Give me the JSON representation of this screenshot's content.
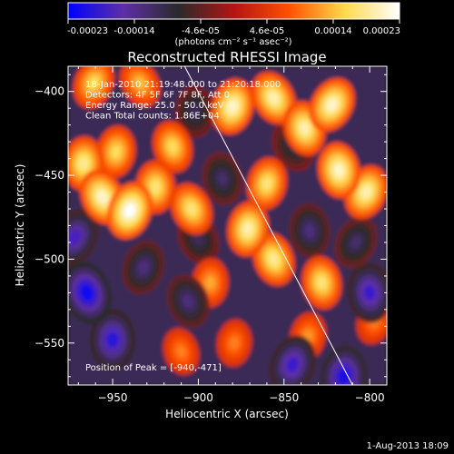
{
  "colorbar": {
    "tick_labels": [
      "-0.00023",
      "-0.00014",
      "-4.6e-05",
      "4.6e-05",
      "0.00014",
      "0.00023"
    ],
    "range": [
      -0.00023,
      0.00023
    ],
    "units_label": "(photons cm⁻² s⁻¹ asec⁻²)"
  },
  "chart_data": {
    "type": "heatmap",
    "title": "Reconstructed RHESSI Image",
    "xlabel": "Heliocentric X (arcsec)",
    "ylabel": "Heliocentric Y (arcsec)",
    "xlim": [
      -976,
      -790
    ],
    "ylim": [
      -575,
      -385
    ],
    "x_ticks": [
      -950,
      -900,
      -850,
      -800
    ],
    "y_ticks": [
      -550,
      -500,
      -450,
      -400
    ],
    "colormap": [
      "#0000ff",
      "#5e2fa7",
      "#2a2a2a",
      "#b41414",
      "#ff5000",
      "#ffd94a",
      "#ffffff"
    ],
    "info_lines": [
      "18-Jan-2010 21:19:48.000 to 21:20:18.000",
      "Detectors: 4F 5F 6F 7F 8F, Att 0",
      "Energy Range: 25.0 - 50.0 keV",
      "Clean    Total counts: 1.86E+04"
    ],
    "peak_label": "Position of Peak = [-940,-471]",
    "peak": [
      -940,
      -471
    ],
    "limb_line": [
      [
        -908,
        -385
      ],
      [
        -810,
        -575
      ]
    ],
    "sources": [
      {
        "x": -940,
        "y": -471,
        "v": 1.0
      },
      {
        "x": -956,
        "y": -463,
        "v": 0.9
      },
      {
        "x": -967,
        "y": -443,
        "v": 0.8
      },
      {
        "x": -948,
        "y": -436,
        "v": 0.7
      },
      {
        "x": -925,
        "y": -457,
        "v": 0.75
      },
      {
        "x": -915,
        "y": -433,
        "v": 0.7
      },
      {
        "x": -904,
        "y": -470,
        "v": 0.75
      },
      {
        "x": -880,
        "y": -409,
        "v": 0.9
      },
      {
        "x": -856,
        "y": -404,
        "v": 0.85
      },
      {
        "x": -860,
        "y": -455,
        "v": 0.75
      },
      {
        "x": -871,
        "y": -482,
        "v": 0.85
      },
      {
        "x": -856,
        "y": -500,
        "v": 0.8
      },
      {
        "x": -838,
        "y": -422,
        "v": 0.85
      },
      {
        "x": -818,
        "y": -447,
        "v": 0.9
      },
      {
        "x": -802,
        "y": -460,
        "v": 0.85
      },
      {
        "x": -822,
        "y": -408,
        "v": 0.9
      },
      {
        "x": -828,
        "y": -514,
        "v": 0.75
      },
      {
        "x": -893,
        "y": -514,
        "v": 0.55
      },
      {
        "x": -879,
        "y": -550,
        "v": 0.45
      },
      {
        "x": -836,
        "y": -546,
        "v": 0.5
      },
      {
        "x": -961,
        "y": -395,
        "v": 0.7
      },
      {
        "x": -934,
        "y": -395,
        "v": 0.6
      },
      {
        "x": -910,
        "y": -555,
        "v": 0.45
      },
      {
        "x": -797,
        "y": -537,
        "v": 0.45
      },
      {
        "x": -965,
        "y": -520,
        "v": -0.95
      },
      {
        "x": -950,
        "y": -548,
        "v": -0.85
      },
      {
        "x": -972,
        "y": -487,
        "v": -0.75
      },
      {
        "x": -845,
        "y": -563,
        "v": -0.8
      },
      {
        "x": -815,
        "y": -570,
        "v": -0.9
      },
      {
        "x": -800,
        "y": -520,
        "v": -0.8
      },
      {
        "x": -906,
        "y": -525,
        "v": -0.55
      },
      {
        "x": -932,
        "y": -505,
        "v": -0.55
      },
      {
        "x": -886,
        "y": -452,
        "v": -0.5
      },
      {
        "x": -835,
        "y": -483,
        "v": -0.55
      },
      {
        "x": -808,
        "y": -490,
        "v": -0.5
      },
      {
        "x": -902,
        "y": -412,
        "v": -0.45
      },
      {
        "x": -845,
        "y": -433,
        "v": -0.4
      },
      {
        "x": -900,
        "y": -488,
        "v": -0.45
      }
    ]
  },
  "footer": {
    "timestamp": "1-Aug-2013 18:09"
  }
}
